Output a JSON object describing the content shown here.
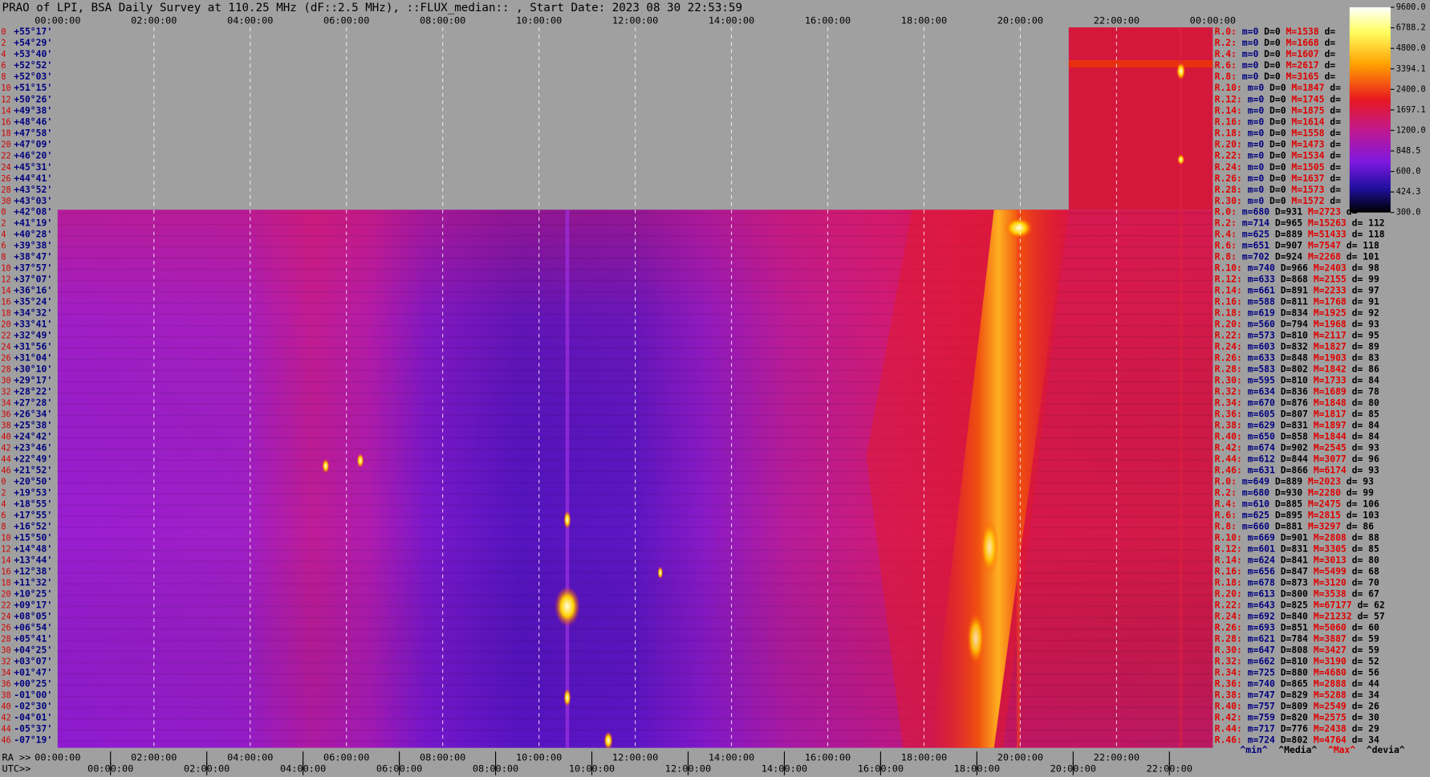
{
  "chart_data": {
    "type": "heatmap",
    "title": "PRAO of LPI, BSA Daily Survey at 110.25 MHz (dF::2.5 MHz), ::FLUX_median:: , Start Date: 2023 08 30 22:53:59",
    "top_time_ticks": [
      "00:00:00",
      "02:00:00",
      "04:00:00",
      "06:00:00",
      "08:00:00",
      "10:00:00",
      "12:00:00",
      "14:00:00",
      "16:00:00",
      "18:00:00",
      "20:00:00",
      "22:00:00",
      "00:00:00"
    ],
    "ra_label": "RA >>",
    "ra_ticks": [
      "00:00:00",
      "02:00:00",
      "04:00:00",
      "06:00:00",
      "08:00:00",
      "10:00:00",
      "12:00:00",
      "14:00:00",
      "16:00:00",
      "18:00:00",
      "20:00:00",
      "22:00:00"
    ],
    "utc_label": "UTC>>",
    "utc_ticks": [
      "00:00:00",
      "02:00:00",
      "04:00:00",
      "06:00:00",
      "08:00:00",
      "10:00:00",
      "12:00:00",
      "14:00:00",
      "16:00:00",
      "18:00:00",
      "20:00:00",
      "22:00:00"
    ],
    "upper_rows": [
      "0",
      "2",
      "4",
      "6",
      "8",
      "10",
      "12",
      "14",
      "16",
      "18",
      "20",
      "22",
      "24",
      "26",
      "28",
      "30"
    ],
    "upper_decs": [
      "+55°17'",
      "+54°29'",
      "+53°40'",
      "+52°52'",
      "+52°03'",
      "+51°15'",
      "+50°26'",
      "+49°38'",
      "+48°46'",
      "+47°58'",
      "+47°09'",
      "+46°20'",
      "+45°31'",
      "+44°41'",
      "+43°52'",
      "+43°03'"
    ],
    "lower_rows": [
      "0",
      "2",
      "4",
      "6",
      "8",
      "10",
      "12",
      "14",
      "16",
      "18",
      "20",
      "22",
      "24",
      "26",
      "28",
      "30",
      "32",
      "34",
      "36",
      "38",
      "40",
      "42",
      "44",
      "46",
      "0",
      "2",
      "4",
      "6",
      "8",
      "10",
      "12",
      "14",
      "16",
      "18",
      "20",
      "22",
      "24",
      "26",
      "28",
      "30",
      "32",
      "34",
      "36",
      "38",
      "40",
      "42",
      "44",
      "46"
    ],
    "lower_decs": [
      "+42°08'",
      "+41°19'",
      "+40°28'",
      "+39°38'",
      "+38°47'",
      "+37°57'",
      "+37°07'",
      "+36°16'",
      "+35°24'",
      "+34°32'",
      "+33°41'",
      "+32°49'",
      "+31°56'",
      "+31°04'",
      "+30°10'",
      "+29°17'",
      "+28°22'",
      "+27°28'",
      "+26°34'",
      "+25°38'",
      "+24°42'",
      "+23°46'",
      "+22°49'",
      "+21°52'",
      "+20°50'",
      "+19°53'",
      "+18°55'",
      "+17°55'",
      "+16°52'",
      "+15°50'",
      "+14°48'",
      "+13°44'",
      "+12°38'",
      "+11°32'",
      "+10°25'",
      "+09°17'",
      "+08°05'",
      "+06°54'",
      "+05°41'",
      "+04°25'",
      "+03°07'",
      "+01°47'",
      "+00°25'",
      "-01°00'",
      "-02°30'",
      "-04°01'",
      "-05°37'",
      "-07°19'"
    ],
    "upper_stats": [
      [
        "R.0:",
        "m=0",
        "D=0",
        "M=1538",
        "d="
      ],
      [
        "R.2:",
        "m=0",
        "D=0",
        "M=1668",
        "d="
      ],
      [
        "R.4:",
        "m=0",
        "D=0",
        "M=1607",
        "d="
      ],
      [
        "R.6:",
        "m=0",
        "D=0",
        "M=2617",
        "d="
      ],
      [
        "R.8:",
        "m=0",
        "D=0",
        "M=3165",
        "d="
      ],
      [
        "R.10:",
        "m=0",
        "D=0",
        "M=1847",
        "d="
      ],
      [
        "R.12:",
        "m=0",
        "D=0",
        "M=1745",
        "d="
      ],
      [
        "R.14:",
        "m=0",
        "D=0",
        "M=1875",
        "d="
      ],
      [
        "R.16:",
        "m=0",
        "D=0",
        "M=1614",
        "d="
      ],
      [
        "R.18:",
        "m=0",
        "D=0",
        "M=1558",
        "d="
      ],
      [
        "R.20:",
        "m=0",
        "D=0",
        "M=1473",
        "d="
      ],
      [
        "R.22:",
        "m=0",
        "D=0",
        "M=1534",
        "d="
      ],
      [
        "R.24:",
        "m=0",
        "D=0",
        "M=1505",
        "d="
      ],
      [
        "R.26:",
        "m=0",
        "D=0",
        "M=1637",
        "d="
      ],
      [
        "R.28:",
        "m=0",
        "D=0",
        "M=1573",
        "d="
      ],
      [
        "R.30:",
        "m=0",
        "D=0",
        "M=1572",
        "d="
      ]
    ],
    "lower_stats": [
      [
        "R.0:",
        "m=680",
        "D=931",
        "M=2723",
        "d="
      ],
      [
        "R.2:",
        "m=714",
        "D=965",
        "M=15263",
        "d= 112"
      ],
      [
        "R.4:",
        "m=625",
        "D=889",
        "M=51433",
        "d= 118"
      ],
      [
        "R.6:",
        "m=651",
        "D=907",
        "M=7547",
        "d= 118"
      ],
      [
        "R.8:",
        "m=702",
        "D=924",
        "M=2268",
        "d= 101"
      ],
      [
        "R.10:",
        "m=740",
        "D=966",
        "M=2403",
        "d= 98"
      ],
      [
        "R.12:",
        "m=633",
        "D=868",
        "M=2155",
        "d= 99"
      ],
      [
        "R.14:",
        "m=661",
        "D=891",
        "M=2233",
        "d= 97"
      ],
      [
        "R.16:",
        "m=588",
        "D=811",
        "M=1768",
        "d= 91"
      ],
      [
        "R.18:",
        "m=619",
        "D=834",
        "M=1925",
        "d= 92"
      ],
      [
        "R.20:",
        "m=560",
        "D=794",
        "M=1968",
        "d= 93"
      ],
      [
        "R.22:",
        "m=573",
        "D=810",
        "M=2117",
        "d= 95"
      ],
      [
        "R.24:",
        "m=603",
        "D=832",
        "M=1827",
        "d= 89"
      ],
      [
        "R.26:",
        "m=633",
        "D=848",
        "M=1903",
        "d= 83"
      ],
      [
        "R.28:",
        "m=583",
        "D=802",
        "M=1842",
        "d= 86"
      ],
      [
        "R.30:",
        "m=595",
        "D=810",
        "M=1733",
        "d= 84"
      ],
      [
        "R.32:",
        "m=634",
        "D=836",
        "M=1689",
        "d= 78"
      ],
      [
        "R.34:",
        "m=670",
        "D=876",
        "M=1848",
        "d= 80"
      ],
      [
        "R.36:",
        "m=605",
        "D=807",
        "M=1817",
        "d= 85"
      ],
      [
        "R.38:",
        "m=629",
        "D=831",
        "M=1897",
        "d= 84"
      ],
      [
        "R.40:",
        "m=650",
        "D=858",
        "M=1844",
        "d= 84"
      ],
      [
        "R.42:",
        "m=674",
        "D=902",
        "M=2545",
        "d= 93"
      ],
      [
        "R.44:",
        "m=612",
        "D=844",
        "M=3077",
        "d= 96"
      ],
      [
        "R.46:",
        "m=631",
        "D=866",
        "M=6174",
        "d= 93"
      ],
      [
        "R.0:",
        "m=649",
        "D=889",
        "M=2023",
        "d= 93"
      ],
      [
        "R.2:",
        "m=680",
        "D=930",
        "M=2280",
        "d= 99"
      ],
      [
        "R.4:",
        "m=610",
        "D=885",
        "M=2475",
        "d= 106"
      ],
      [
        "R.6:",
        "m=625",
        "D=895",
        "M=2815",
        "d= 103"
      ],
      [
        "R.8:",
        "m=660",
        "D=881",
        "M=3297",
        "d= 86"
      ],
      [
        "R.10:",
        "m=669",
        "D=901",
        "M=2808",
        "d= 88"
      ],
      [
        "R.12:",
        "m=601",
        "D=831",
        "M=3305",
        "d= 85"
      ],
      [
        "R.14:",
        "m=624",
        "D=841",
        "M=3013",
        "d= 80"
      ],
      [
        "R.16:",
        "m=656",
        "D=847",
        "M=5499",
        "d= 68"
      ],
      [
        "R.18:",
        "m=678",
        "D=873",
        "M=3120",
        "d= 70"
      ],
      [
        "R.20:",
        "m=613",
        "D=800",
        "M=3538",
        "d= 67"
      ],
      [
        "R.22:",
        "m=643",
        "D=825",
        "M=67177",
        "d= 62"
      ],
      [
        "R.24:",
        "m=692",
        "D=840",
        "M=21232",
        "d= 57"
      ],
      [
        "R.26:",
        "m=693",
        "D=851",
        "M=5060",
        "d= 60"
      ],
      [
        "R.28:",
        "m=621",
        "D=784",
        "M=3887",
        "d= 59"
      ],
      [
        "R.30:",
        "m=647",
        "D=808",
        "M=3427",
        "d= 59"
      ],
      [
        "R.32:",
        "m=662",
        "D=810",
        "M=3190",
        "d= 52"
      ],
      [
        "R.34:",
        "m=725",
        "D=880",
        "M=4680",
        "d= 56"
      ],
      [
        "R.36:",
        "m=740",
        "D=865",
        "M=2888",
        "d= 44"
      ],
      [
        "R.38:",
        "m=747",
        "D=829",
        "M=5288",
        "d= 34"
      ],
      [
        "R.40:",
        "m=757",
        "D=809",
        "M=2549",
        "d= 26"
      ],
      [
        "R.42:",
        "m=759",
        "D=820",
        "M=2575",
        "d= 30"
      ],
      [
        "R.44:",
        "m=717",
        "D=776",
        "M=2438",
        "d= 29"
      ],
      [
        "R.46:",
        "m=724",
        "D=802",
        "M=4764",
        "d= 34"
      ]
    ],
    "stats_footer": [
      "^min^",
      "^Media^",
      "^Max^",
      "^devia^"
    ],
    "colorbar": {
      "log": true,
      "clim": [
        300,
        9600
      ],
      "ticks": [
        {
          "value": 9600,
          "label": "9600.0"
        },
        {
          "value": 6788.2,
          "label": "6788.2"
        },
        {
          "value": 4800,
          "label": "4800.0"
        },
        {
          "value": 3394.1,
          "label": "3394.1"
        },
        {
          "value": 2400,
          "label": "2400.0"
        },
        {
          "value": 1697.1,
          "label": "1697.1"
        },
        {
          "value": 1200,
          "label": "1200.0"
        },
        {
          "value": 848.5,
          "label": "848.5"
        },
        {
          "value": 600,
          "label": "600.0"
        },
        {
          "value": 424.3,
          "label": "424.3"
        },
        {
          "value": 300,
          "label": "300.0"
        }
      ]
    }
  }
}
